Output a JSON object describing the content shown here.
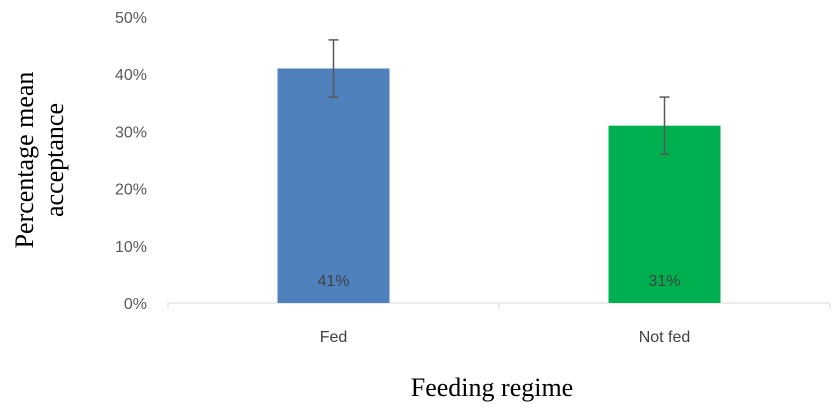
{
  "chart_data": {
    "type": "bar",
    "categories": [
      "Fed",
      "Not fed"
    ],
    "values": [
      41,
      31
    ],
    "error": [
      5,
      5
    ],
    "data_labels": [
      "41%",
      "31%"
    ],
    "colors": [
      "#4f81bd",
      "#00b050"
    ],
    "ylim": [
      0,
      50
    ],
    "ytick_values": [
      0,
      10,
      20,
      30,
      40,
      50
    ],
    "yticks": [
      "0%",
      "10%",
      "20%",
      "30%",
      "40%",
      "50%"
    ],
    "xlabel": "Feeding regime",
    "ylabel_lines": [
      "Percentage mean",
      "acceptance"
    ],
    "grid": false,
    "legend": "none"
  }
}
